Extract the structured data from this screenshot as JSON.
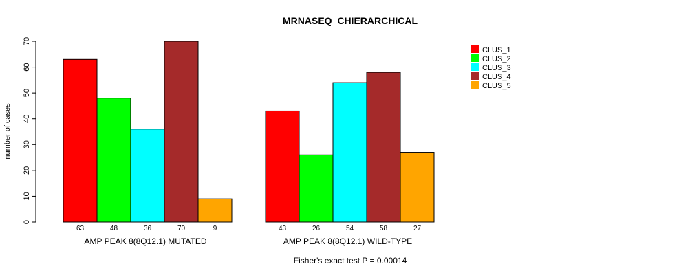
{
  "chart_data": {
    "type": "bar",
    "title": "MRNASEQ_CHIERARCHICAL",
    "ylabel": "number of cases",
    "ylim": [
      0,
      70
    ],
    "yticks": [
      0,
      10,
      20,
      30,
      40,
      50,
      60,
      70
    ],
    "categories": [
      "AMP PEAK  8(8Q12.1) MUTATED",
      "AMP PEAK  8(8Q12.1) WILD-TYPE"
    ],
    "series": [
      {
        "name": "CLUS_1",
        "color": "#ff0000",
        "values": [
          63,
          43
        ],
        "labels": [
          "63",
          "43"
        ]
      },
      {
        "name": "CLUS_2",
        "color": "#00ff00",
        "values": [
          48,
          26
        ],
        "labels": [
          "48",
          "26"
        ]
      },
      {
        "name": "CLUS_3",
        "color": "#00ffff",
        "values": [
          36,
          54
        ],
        "labels": [
          "36",
          "54"
        ]
      },
      {
        "name": "CLUS_4",
        "color": "#a52a2a",
        "values": [
          70,
          58
        ],
        "labels": [
          "70",
          "58"
        ]
      },
      {
        "name": "CLUS_5",
        "color": "#ffa500",
        "values": [
          9,
          27
        ],
        "labels": [
          "9",
          "27"
        ]
      }
    ],
    "legend_position": "top-right",
    "grid": false,
    "footnote": "Fisher's exact test P = 0.00014"
  }
}
